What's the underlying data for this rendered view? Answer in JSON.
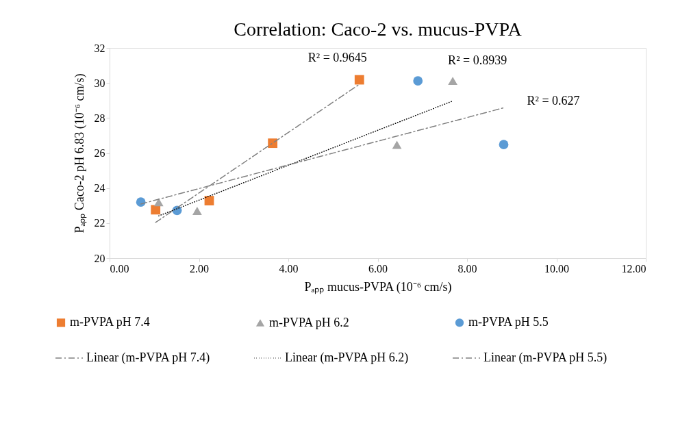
{
  "chart_data": {
    "type": "scatter",
    "title": "Correlation:  Caco-2 vs. mucus-PVPA",
    "xlabel": "Pₐₚₚ mucus-PVPA  (10⁻⁶ cm/s)",
    "ylabel": "Pₐₚₚ Caco-2 pH 6.83  (10⁻⁶ cm/s)",
    "xlim": [
      0,
      12
    ],
    "ylim": [
      20,
      32
    ],
    "xticks": [
      {
        "value": 0,
        "label": "0.00"
      },
      {
        "value": 2,
        "label": "2.00"
      },
      {
        "value": 4,
        "label": "4.00"
      },
      {
        "value": 6,
        "label": "6.00"
      },
      {
        "value": 8,
        "label": "8.00"
      },
      {
        "value": 10,
        "label": "10.00"
      },
      {
        "value": 12,
        "label": "12.00"
      }
    ],
    "yticks": [
      20,
      22,
      24,
      26,
      28,
      30,
      32
    ],
    "grid": false,
    "legend": "bottom",
    "series": [
      {
        "name": "m-PVPA pH 7.4",
        "type": "scatter",
        "marker": "square",
        "color": "#ed7d31",
        "x": [
          1.03,
          2.23,
          3.65,
          5.59
        ],
        "values": [
          22.76,
          23.28,
          26.56,
          30.18
        ]
      },
      {
        "name": "m-PVPA pH 6.2",
        "type": "scatter",
        "marker": "triangle",
        "color": "#a5a5a5",
        "x": [
          1.1,
          1.96,
          6.43,
          7.68
        ],
        "values": [
          23.19,
          22.7,
          26.47,
          30.12
        ]
      },
      {
        "name": "m-PVPA pH 5.5",
        "type": "scatter",
        "marker": "circle",
        "color": "#5b9bd5",
        "x": [
          0.7,
          1.51,
          6.9,
          8.82
        ],
        "values": [
          23.2,
          22.72,
          30.12,
          26.48
        ]
      },
      {
        "name": "Linear (m-PVPA pH 7.4)",
        "type": "line",
        "line_style": "dashed",
        "color": "#808080",
        "x": [
          1.03,
          5.59
        ],
        "values": [
          22.04,
          29.92
        ]
      },
      {
        "name": "Linear (m-PVPA pH 6.2)",
        "type": "line",
        "line_style": "dotted",
        "color": "#000000",
        "x": [
          1.1,
          7.68
        ],
        "values": [
          22.41,
          28.97
        ]
      },
      {
        "name": "Linear (m-PVPA pH 5.5)",
        "type": "line",
        "line_style": "dashed",
        "color": "#808080",
        "x": [
          0.7,
          8.82
        ],
        "values": [
          23.09,
          28.58
        ]
      }
    ],
    "annotations": [
      "R² = 0.9645",
      "R² = 0.8939",
      "R² = 0.627"
    ]
  }
}
